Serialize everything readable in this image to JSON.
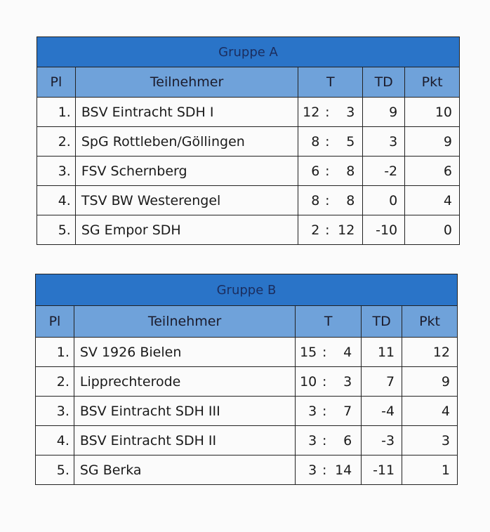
{
  "headers": {
    "pl": "Pl",
    "name": "Teilnehmer",
    "t": "T",
    "td": "TD",
    "pkt": "Pkt"
  },
  "colors": {
    "title_bg": "#2a74c8",
    "header_bg": "#6fa2da"
  },
  "groups": [
    {
      "title": "Gruppe A",
      "rows": [
        {
          "pl": "1.",
          "name": "BSV Eintracht SDH I",
          "t1": "12",
          "t2": "3",
          "td": "9",
          "pkt": "10"
        },
        {
          "pl": "2.",
          "name": "SpG Rottleben/Göllingen",
          "t1": "8",
          "t2": "5",
          "td": "3",
          "pkt": "9"
        },
        {
          "pl": "3.",
          "name": "FSV Schernberg",
          "t1": "6",
          "t2": "8",
          "td": "-2",
          "pkt": "6"
        },
        {
          "pl": "4.",
          "name": "TSV BW Westerengel",
          "t1": "8",
          "t2": "8",
          "td": "0",
          "pkt": "4"
        },
        {
          "pl": "5.",
          "name": "SG Empor SDH",
          "t1": "2",
          "t2": "12",
          "td": "-10",
          "pkt": "0"
        }
      ]
    },
    {
      "title": "Gruppe B",
      "rows": [
        {
          "pl": "1.",
          "name": "SV 1926 Bielen",
          "t1": "15",
          "t2": "4",
          "td": "11",
          "pkt": "12"
        },
        {
          "pl": "2.",
          "name": "Lipprechterode",
          "t1": "10",
          "t2": "3",
          "td": "7",
          "pkt": "9"
        },
        {
          "pl": "3.",
          "name": "BSV Eintracht SDH III",
          "t1": "3",
          "t2": "7",
          "td": "-4",
          "pkt": "4"
        },
        {
          "pl": "4.",
          "name": "BSV Eintracht SDH II",
          "t1": "3",
          "t2": "6",
          "td": "-3",
          "pkt": "3"
        },
        {
          "pl": "5.",
          "name": "SG Berka",
          "t1": "3",
          "t2": "14",
          "td": "-11",
          "pkt": "1"
        }
      ]
    }
  ]
}
